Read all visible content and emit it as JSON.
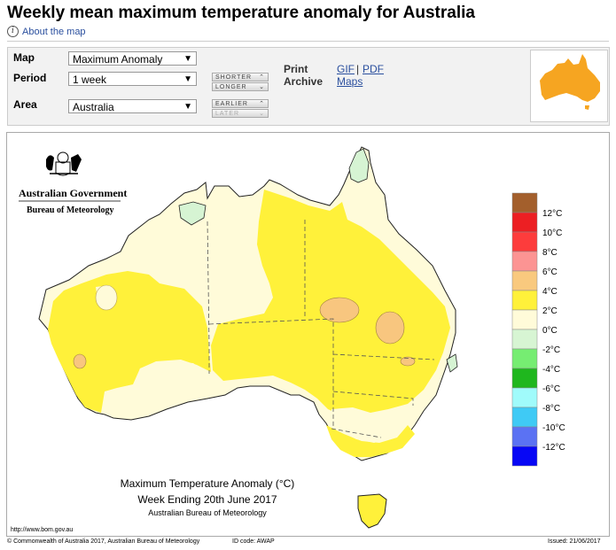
{
  "page": {
    "title": "Weekly mean maximum temperature anomaly for Australia",
    "about_link": "About the map"
  },
  "controls": {
    "map_label": "Map",
    "map_value": "Maximum Anomaly",
    "period_label": "Period",
    "period_value": "1 week",
    "area_label": "Area",
    "area_value": "Australia",
    "shorter": "SHORTER",
    "longer": "LONGER",
    "earlier": "EARLIER",
    "later": "LATER",
    "print_label": "Print",
    "archive_label": "Archive",
    "gif_link": "GIF",
    "separator": "|",
    "pdf_link": "PDF",
    "maps_link": "Maps"
  },
  "colors": {
    "ocean": "#ffffff",
    "light_cream": "#fffbd9",
    "yellow": "#fff13a",
    "orange": "#f8c67f",
    "light_green": "#d6f4d3",
    "coast": "#222222",
    "thumb_orange": "#f6a521"
  },
  "map": {
    "gov_line1": "Australian Government",
    "gov_line2": "Bureau of Meteorology",
    "caption_line1": "Maximum Temperature Anomaly (°C)",
    "caption_line2": "Week Ending 20th June 2017",
    "caption_line3": "Australian Bureau of Meteorology",
    "url": "http://www.bom.gov.au"
  },
  "legend": [
    {
      "label": "12°C",
      "color": "#a35f2c"
    },
    {
      "label": "10°C",
      "color": "#ec1f23"
    },
    {
      "label": "8°C",
      "color": "#fd3c3c"
    },
    {
      "label": "6°C",
      "color": "#fc9493"
    },
    {
      "label": "4°C",
      "color": "#f9c97e"
    },
    {
      "label": "2°C",
      "color": "#fff13a"
    },
    {
      "label": "0°C",
      "color": "#fffbd9"
    },
    {
      "label": "-2°C",
      "color": "#d7f5d3"
    },
    {
      "label": "-4°C",
      "color": "#76ed72"
    },
    {
      "label": "-6°C",
      "color": "#1fb71e"
    },
    {
      "label": "-8°C",
      "color": "#a0fbfb"
    },
    {
      "label": "-10°C",
      "color": "#3fcaf5"
    },
    {
      "label": "-12°C",
      "color": "#5b72f3"
    },
    {
      "label": "",
      "color": "#0707f5"
    }
  ],
  "footer": {
    "copyright": "© Commonwealth of Australia 2017, Australian Bureau of Meteorology",
    "id_code": "ID code: AWAP",
    "issued": "Issued: 21/06/2017"
  }
}
